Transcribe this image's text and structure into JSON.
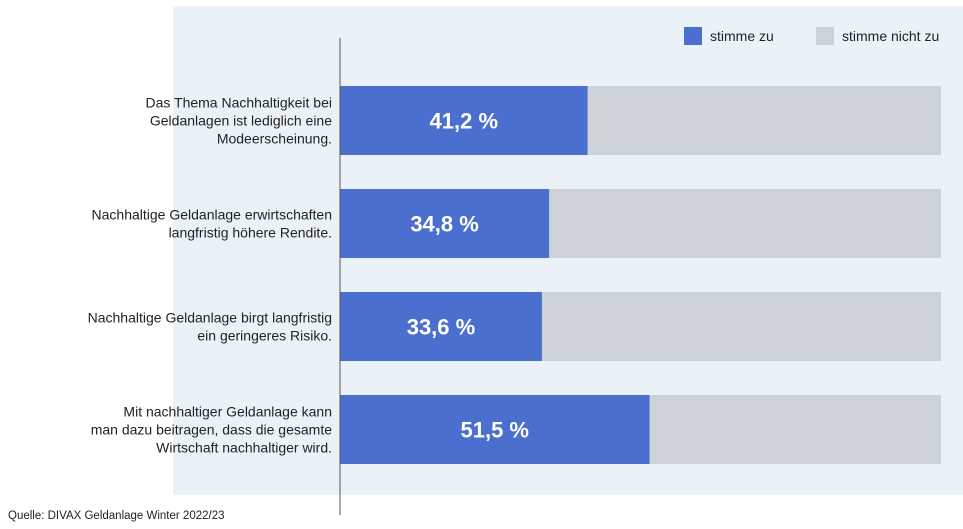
{
  "chart_data": {
    "type": "bar",
    "orientation": "horizontal",
    "stacked": true,
    "categories": [
      [
        "Das Thema Nachhaltigkeit bei",
        "Geldanlagen ist lediglich eine",
        "Modeerscheinung."
      ],
      [
        "Nachhaltige Geldanlage erwirtschaften",
        "langfristig höhere Rendite."
      ],
      [
        "Nachhaltige Geldanlage birgt langfristig",
        "ein geringeres Risiko."
      ],
      [
        "Mit nachhaltiger Geldanlage kann",
        "man dazu beitragen, dass die gesamte",
        "Wirtschaft nachhaltiger wird."
      ]
    ],
    "series": [
      {
        "name": "stimme zu",
        "color": "#4a6fcf",
        "values": [
          41.2,
          34.8,
          33.6,
          51.5
        ],
        "data_labels": [
          "41,2 %",
          "34,8 %",
          "33,6 %",
          "51,5 %"
        ]
      },
      {
        "name": "stimme nicht zu",
        "color": "#cdd1d8",
        "values": [
          58.8,
          65.2,
          66.4,
          48.5
        ]
      }
    ],
    "xlim": [
      0,
      100
    ],
    "grid": false,
    "legend_position": "top-right",
    "plot_background": "#eaf2f8",
    "axis_color": "#555555"
  },
  "source": "Quelle: DIVAX Geldanlage Winter 2022/23"
}
